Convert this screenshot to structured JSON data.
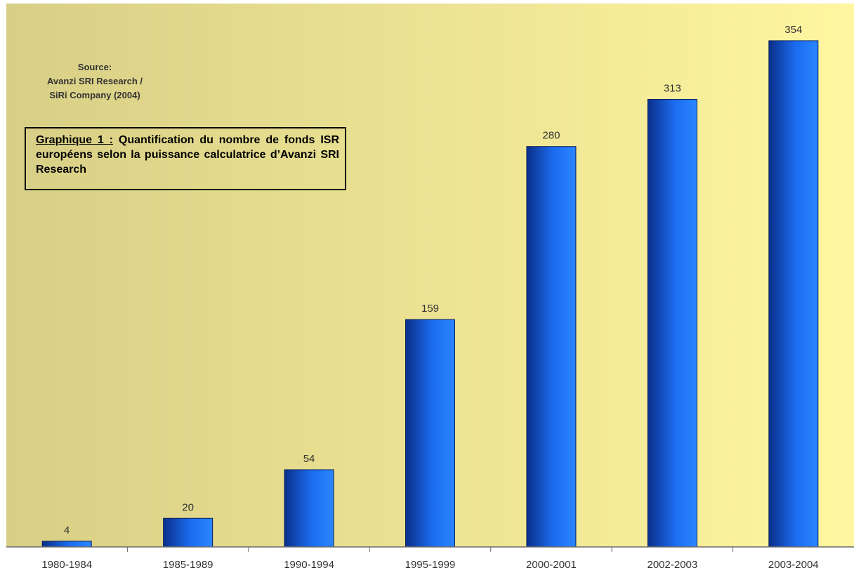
{
  "source": {
    "lines": [
      "Source:",
      "Avanzi SRI Research /",
      "SiRi Company (2004)"
    ]
  },
  "caption": {
    "label": "Graphique 1 :",
    "text": " Quantification du nombre de fonds ISR européens selon la puissance calculatrice d’Avanzi SRI Research"
  },
  "colors": {
    "background_left": "#d8cf86",
    "background_right": "#fff6a0",
    "bar_dark": "#0a2f8a",
    "bar_light": "#2a86ff",
    "axis": "#6b6b6b",
    "text": "#333333"
  },
  "chart_data": {
    "type": "bar",
    "categories": [
      "1980-1984",
      "1985-1989",
      "1990-1994",
      "1995-1999",
      "2000-2001",
      "2002-2003",
      "2003-2004"
    ],
    "values": [
      4,
      20,
      54,
      159,
      280,
      313,
      354
    ],
    "data_labels": [
      "4",
      "20",
      "54",
      "159",
      "280",
      "313",
      "354"
    ],
    "ylim": [
      0,
      380
    ],
    "grid": false,
    "legend": "none"
  }
}
